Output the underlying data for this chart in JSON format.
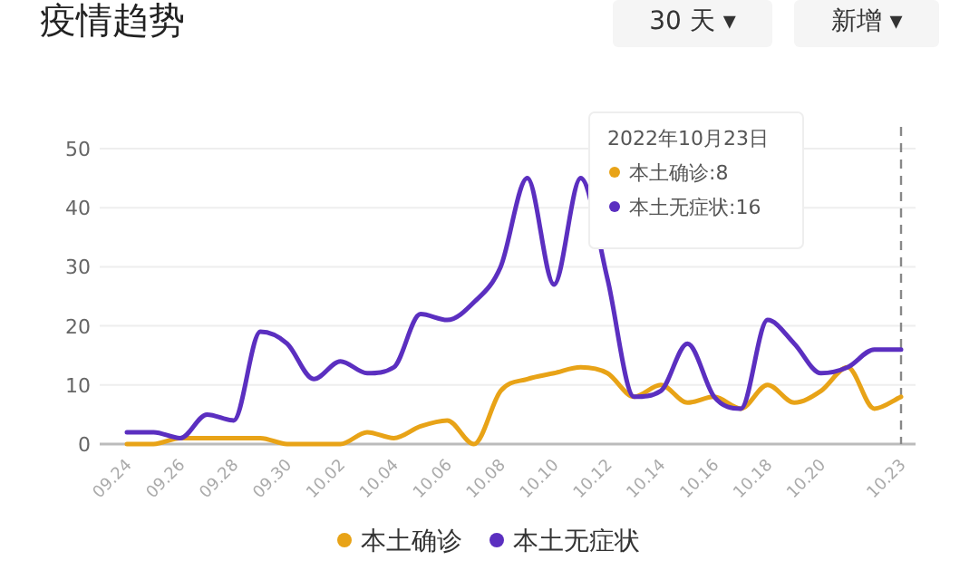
{
  "chart_data": {
    "type": "line",
    "title": "疫情趋势",
    "categories": [
      "09.24",
      null,
      "09.26",
      null,
      "09.28",
      null,
      "09.30",
      null,
      "10.02",
      null,
      "10.04",
      null,
      "10.06",
      null,
      "10.08",
      null,
      "10.10",
      null,
      "10.12",
      null,
      "10.14",
      null,
      "10.16",
      null,
      "10.18",
      null,
      "10.20",
      null,
      null,
      "10.23"
    ],
    "series": [
      {
        "name": "本土确诊",
        "color": "#e8a317",
        "values": [
          0,
          0,
          1,
          1,
          1,
          1,
          0,
          0,
          0,
          2,
          1,
          3,
          4,
          0,
          9,
          11,
          12,
          13,
          12,
          8,
          10,
          7,
          8,
          6,
          10,
          7,
          9,
          13,
          6,
          8
        ]
      },
      {
        "name": "本土无症状",
        "color": "#5b2fc0",
        "values": [
          2,
          2,
          1,
          5,
          4,
          19,
          17,
          11,
          14,
          12,
          13,
          22,
          21,
          24,
          30,
          45,
          27,
          45,
          28,
          8,
          9,
          17,
          8,
          6,
          21,
          17,
          12,
          13,
          16,
          16
        ]
      }
    ],
    "ylim": [
      0,
      50
    ],
    "yticks": [
      0,
      10,
      20,
      30,
      40,
      50
    ],
    "grid": "y",
    "legend": "bottom",
    "marker": "none",
    "line_style": "solid",
    "ref_lines": [
      {
        "axis": "x",
        "value": "10.23",
        "line_style": "dashed",
        "color": "#888888"
      }
    ],
    "annotations": [
      "30 天 ▾",
      "新增 ▾",
      "2022年10月23日",
      "本土确诊:8",
      "本土无症状:16"
    ]
  }
}
